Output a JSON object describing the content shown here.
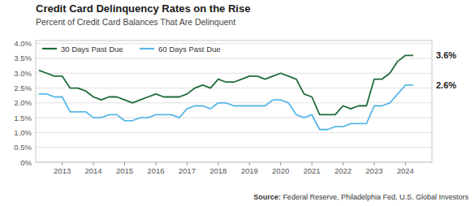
{
  "chart_data": {
    "type": "line",
    "title": "Credit Card Delinquency Rates on the Rise",
    "subtitle": "Percent of Credit Card Balances That Are Delinquent",
    "annotations": [
      {
        "text": "3.6%",
        "value": 0.036
      },
      {
        "text": "2.6%",
        "value": 0.026
      },
      {
        "text": "Source:"
      },
      {
        "text": "Federal Reserve, Philadelphia Fed, U.S. Global Investors"
      }
    ],
    "x": [
      2012.25,
      2012.5,
      2012.75,
      2013.0,
      2013.25,
      2013.5,
      2013.75,
      2014.0,
      2014.25,
      2014.5,
      2014.75,
      2015.0,
      2015.25,
      2015.5,
      2015.75,
      2016.0,
      2016.25,
      2016.5,
      2016.75,
      2017.0,
      2017.25,
      2017.5,
      2017.75,
      2018.0,
      2018.25,
      2018.5,
      2018.75,
      2019.0,
      2019.25,
      2019.5,
      2019.75,
      2020.0,
      2020.25,
      2020.5,
      2020.75,
      2021.0,
      2021.25,
      2021.5,
      2021.75,
      2022.0,
      2022.25,
      2022.5,
      2022.75,
      2023.0,
      2023.25,
      2023.5,
      2023.75,
      2024.0,
      2024.25
    ],
    "series": [
      {
        "name": "30 Days Past Due",
        "color": "#1f6b3a",
        "values": [
          0.031,
          0.03,
          0.029,
          0.029,
          0.025,
          0.025,
          0.024,
          0.022,
          0.021,
          0.022,
          0.022,
          0.021,
          0.02,
          0.021,
          0.022,
          0.023,
          0.022,
          0.022,
          0.022,
          0.023,
          0.025,
          0.026,
          0.025,
          0.028,
          0.027,
          0.027,
          0.028,
          0.029,
          0.029,
          0.028,
          0.029,
          0.03,
          0.029,
          0.028,
          0.023,
          0.022,
          0.016,
          0.016,
          0.016,
          0.019,
          0.018,
          0.019,
          0.019,
          0.028,
          0.028,
          0.03,
          0.034,
          0.036,
          0.036
        ]
      },
      {
        "name": "60 Days Past Due",
        "color": "#5bb8e8",
        "values": [
          0.023,
          0.023,
          0.022,
          0.022,
          0.017,
          0.017,
          0.017,
          0.015,
          0.015,
          0.016,
          0.016,
          0.014,
          0.014,
          0.015,
          0.015,
          0.016,
          0.016,
          0.016,
          0.015,
          0.018,
          0.019,
          0.019,
          0.018,
          0.02,
          0.02,
          0.019,
          0.019,
          0.019,
          0.019,
          0.019,
          0.021,
          0.021,
          0.02,
          0.016,
          0.015,
          0.016,
          0.011,
          0.011,
          0.012,
          0.012,
          0.013,
          0.013,
          0.013,
          0.019,
          0.019,
          0.02,
          0.023,
          0.026,
          0.026
        ]
      }
    ],
    "xlim": [
      2012.15,
      2024.85
    ],
    "xticks": [
      2013,
      2014,
      2015,
      2016,
      2017,
      2018,
      2019,
      2020,
      2021,
      2022,
      2023,
      2024
    ],
    "ylim": [
      0,
      0.041
    ],
    "yticks": [
      {
        "value": 0,
        "label": "0%"
      },
      {
        "value": 0.005,
        "label": "0.5%"
      },
      {
        "value": 0.01,
        "label": "1.0%"
      },
      {
        "value": 0.015,
        "label": "1.5%"
      },
      {
        "value": 0.02,
        "label": "2.0%"
      },
      {
        "value": 0.025,
        "label": "2.5%"
      },
      {
        "value": 0.03,
        "label": "3.0%"
      },
      {
        "value": 0.035,
        "label": "3.5%"
      },
      {
        "value": 0.04,
        "label": "4.0%"
      }
    ],
    "grid": true,
    "legend": "upper left"
  }
}
